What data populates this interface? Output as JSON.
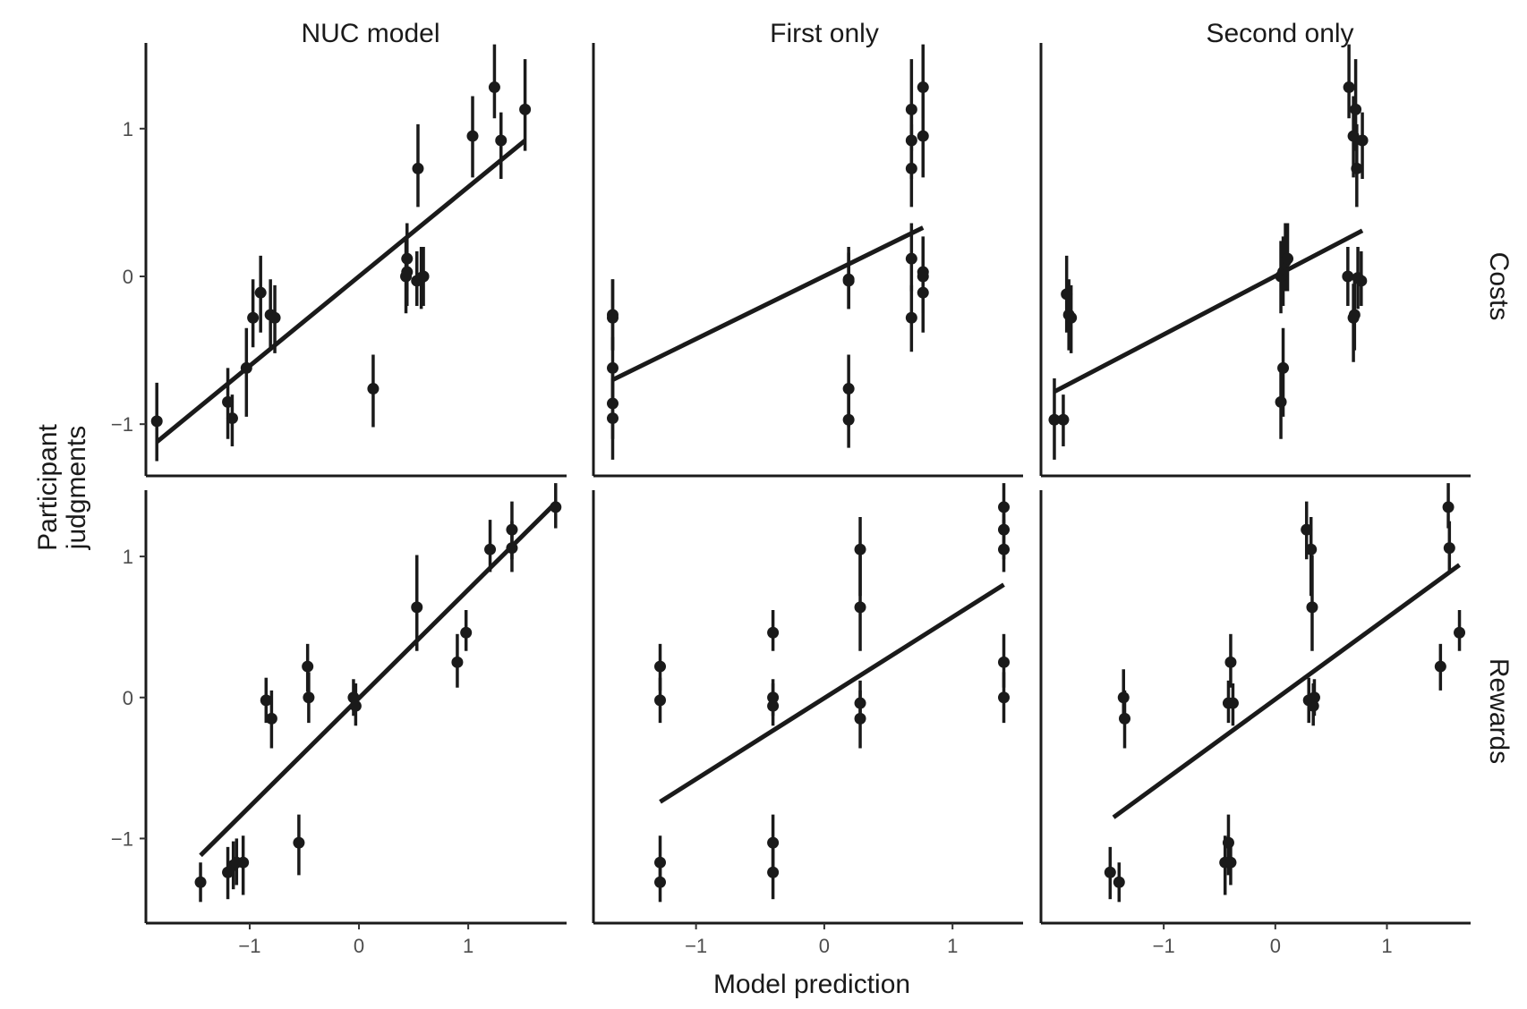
{
  "chart_data": {
    "type": "scatter",
    "xlabel": "Model prediction",
    "ylabel_lines": [
      "Participant",
      "judgments"
    ],
    "columns": [
      "NUC model",
      "First only",
      "Second only"
    ],
    "rows": [
      "Costs",
      "Rewards"
    ],
    "colors": {
      "ink": "#1a1a1a",
      "tick_text": "#4d4d4d"
    },
    "rows_scale": [
      {
        "ylim": [
          -1.35,
          1.58
        ],
        "yticks": [
          -1,
          0,
          1
        ],
        "ytick_labels": [
          "−1",
          "0",
          "1"
        ]
      },
      {
        "ylim": [
          -1.6,
          1.47
        ],
        "yticks": [
          -1,
          0,
          1
        ],
        "ytick_labels": [
          "−1",
          "0",
          "1"
        ]
      }
    ],
    "columns_scale": [
      {
        "xlim": [
          -1.95,
          1.9
        ],
        "xticks": [
          -1,
          0,
          1
        ],
        "xtick_labels": [
          "−1",
          "0",
          "1"
        ]
      },
      {
        "xlim": [
          -1.8,
          1.55
        ],
        "xticks": [
          -1,
          0,
          1
        ],
        "xtick_labels": [
          "−1",
          "0",
          "1"
        ]
      },
      {
        "xlim": [
          -2.1,
          1.75
        ],
        "xticks": [
          -1,
          0,
          1
        ],
        "xtick_labels": [
          "−1",
          "0",
          "1"
        ]
      }
    ],
    "panels": [
      {
        "row": "Costs",
        "column": "NUC model",
        "fit": [
          [
            -1.85,
            -1.12
          ],
          [
            1.52,
            0.92
          ]
        ],
        "points": [
          [
            -1.85,
            -0.98,
            -1.25,
            -0.72
          ],
          [
            -1.2,
            -0.85,
            -1.1,
            -0.62
          ],
          [
            -1.16,
            -0.96,
            -1.15,
            -0.8
          ],
          [
            -1.03,
            -0.62,
            -0.95,
            -0.35
          ],
          [
            -0.97,
            -0.28,
            -0.48,
            -0.02
          ],
          [
            -0.9,
            -0.11,
            -0.38,
            0.14
          ],
          [
            -0.81,
            -0.26,
            -0.5,
            -0.02
          ],
          [
            -0.77,
            -0.28,
            -0.52,
            -0.06
          ],
          [
            0.13,
            -0.76,
            -1.02,
            -0.53
          ],
          [
            0.43,
            0.0,
            -0.25,
            0.24
          ],
          [
            0.44,
            0.03,
            -0.2,
            0.27
          ],
          [
            0.44,
            0.12,
            -0.1,
            0.36
          ],
          [
            0.54,
            0.73,
            0.47,
            1.03
          ],
          [
            0.53,
            -0.03,
            -0.2,
            0.17
          ],
          [
            0.57,
            -0.01,
            -0.22,
            0.2
          ],
          [
            0.59,
            0.0,
            -0.2,
            0.2
          ],
          [
            1.04,
            0.95,
            0.67,
            1.22
          ],
          [
            1.24,
            1.28,
            1.07,
            1.57
          ],
          [
            1.3,
            0.92,
            0.66,
            1.11
          ],
          [
            1.52,
            1.13,
            0.85,
            1.47
          ]
        ]
      },
      {
        "row": "Costs",
        "column": "First only",
        "fit": [
          [
            -1.65,
            -0.7
          ],
          [
            0.77,
            0.33
          ]
        ],
        "points": [
          [
            -1.65,
            -0.96,
            -1.24,
            -0.69
          ],
          [
            -1.65,
            -0.86,
            -1.1,
            -0.62
          ],
          [
            -1.65,
            -0.62,
            -0.85,
            -0.41
          ],
          [
            -1.65,
            -0.28,
            -0.5,
            -0.02
          ],
          [
            -1.65,
            -0.26,
            -0.5,
            -0.02
          ],
          [
            0.19,
            -0.02,
            -0.22,
            0.2
          ],
          [
            0.19,
            -0.03,
            -0.22,
            0.16
          ],
          [
            0.19,
            -0.76,
            -1.02,
            -0.53
          ],
          [
            0.19,
            -0.97,
            -1.16,
            -0.72
          ],
          [
            0.68,
            1.13,
            0.85,
            1.47
          ],
          [
            0.68,
            0.92,
            0.66,
            1.11
          ],
          [
            0.68,
            0.73,
            0.47,
            1.03
          ],
          [
            0.68,
            0.12,
            -0.1,
            0.36
          ],
          [
            0.68,
            -0.28,
            -0.51,
            -0.06
          ],
          [
            0.77,
            1.28,
            1.07,
            1.57
          ],
          [
            0.77,
            0.95,
            0.67,
            1.22
          ],
          [
            0.77,
            0.03,
            -0.2,
            0.27
          ],
          [
            0.77,
            0.0,
            -0.25,
            0.24
          ],
          [
            0.77,
            -0.11,
            -0.38,
            0.14
          ]
        ]
      },
      {
        "row": "Costs",
        "column": "Second only",
        "fit": [
          [
            -1.98,
            -0.78
          ],
          [
            0.78,
            0.31
          ]
        ],
        "points": [
          [
            -1.98,
            -0.97,
            -1.24,
            -0.69
          ],
          [
            -1.9,
            -0.97,
            -1.15,
            -0.8
          ],
          [
            -1.87,
            -0.12,
            -0.38,
            0.14
          ],
          [
            -1.83,
            -0.28,
            -0.52,
            -0.06
          ],
          [
            -1.85,
            -0.26,
            -0.5,
            -0.02
          ],
          [
            0.05,
            -0.85,
            -1.1,
            -0.62
          ],
          [
            0.07,
            -0.62,
            -0.95,
            -0.35
          ],
          [
            0.05,
            0.0,
            -0.25,
            0.24
          ],
          [
            0.07,
            0.03,
            -0.2,
            0.27
          ],
          [
            0.09,
            0.1,
            -0.1,
            0.36
          ],
          [
            0.11,
            0.12,
            -0.1,
            0.36
          ],
          [
            0.66,
            1.28,
            1.07,
            1.57
          ],
          [
            0.7,
            0.95,
            0.67,
            1.22
          ],
          [
            0.72,
            1.13,
            0.85,
            1.47
          ],
          [
            0.73,
            0.73,
            0.47,
            1.03
          ],
          [
            0.78,
            0.92,
            0.66,
            1.11
          ],
          [
            0.65,
            0.0,
            -0.2,
            0.2
          ],
          [
            0.71,
            -0.26,
            -0.5,
            -0.02
          ],
          [
            0.7,
            -0.28,
            -0.58,
            -0.05
          ],
          [
            0.74,
            -0.01,
            -0.22,
            0.2
          ],
          [
            0.77,
            -0.03,
            -0.2,
            0.17
          ]
        ]
      },
      {
        "row": "Rewards",
        "column": "NUC model",
        "fit": [
          [
            -1.45,
            -1.12
          ],
          [
            1.8,
            1.38
          ]
        ],
        "points": [
          [
            -1.45,
            -1.31,
            -1.45,
            -1.17
          ],
          [
            -1.2,
            -1.24,
            -1.43,
            -1.06
          ],
          [
            -1.15,
            -1.19,
            -1.36,
            -1.02
          ],
          [
            -1.12,
            -1.17,
            -1.33,
            -1.0
          ],
          [
            -1.06,
            -1.17,
            -1.4,
            -0.98
          ],
          [
            -0.85,
            -0.02,
            -0.18,
            0.14
          ],
          [
            -0.8,
            -0.15,
            -0.36,
            0.05
          ],
          [
            -0.47,
            0.22,
            0.04,
            0.38
          ],
          [
            -0.46,
            0.0,
            -0.18,
            0.18
          ],
          [
            -0.55,
            -1.03,
            -1.26,
            -0.83
          ],
          [
            -0.05,
            0.0,
            -0.13,
            0.13
          ],
          [
            -0.03,
            -0.06,
            -0.2,
            0.1
          ],
          [
            0.53,
            0.64,
            0.33,
            1.01
          ],
          [
            0.9,
            0.25,
            0.07,
            0.45
          ],
          [
            0.98,
            0.46,
            0.33,
            0.62
          ],
          [
            1.2,
            1.05,
            0.89,
            1.26
          ],
          [
            1.4,
            1.06,
            0.89,
            1.25
          ],
          [
            1.4,
            1.19,
            0.98,
            1.39
          ],
          [
            1.8,
            1.35,
            1.2,
            1.52
          ]
        ]
      },
      {
        "row": "Rewards",
        "column": "First only",
        "fit": [
          [
            -1.28,
            -0.74
          ],
          [
            1.4,
            0.8
          ]
        ],
        "points": [
          [
            -1.28,
            -1.31,
            -1.45,
            -1.17
          ],
          [
            -1.28,
            -1.17,
            -1.33,
            -0.98
          ],
          [
            -1.28,
            0.22,
            0.05,
            0.38
          ],
          [
            -1.28,
            -0.02,
            -0.18,
            0.14
          ],
          [
            -0.4,
            0.46,
            0.33,
            0.62
          ],
          [
            -0.4,
            0.0,
            -0.13,
            0.13
          ],
          [
            -0.4,
            -0.06,
            -0.2,
            0.1
          ],
          [
            -0.4,
            -1.03,
            -1.26,
            -0.83
          ],
          [
            -0.4,
            -1.24,
            -1.43,
            -1.06
          ],
          [
            0.28,
            1.05,
            0.72,
            1.28
          ],
          [
            0.28,
            0.64,
            0.33,
            1.01
          ],
          [
            0.28,
            -0.04,
            -0.18,
            0.12
          ],
          [
            0.28,
            -0.15,
            -0.36,
            0.05
          ],
          [
            1.4,
            1.35,
            1.2,
            1.52
          ],
          [
            1.4,
            1.19,
            0.98,
            1.39
          ],
          [
            1.4,
            1.05,
            0.89,
            1.26
          ],
          [
            1.4,
            0.25,
            0.07,
            0.45
          ],
          [
            1.4,
            0.0,
            -0.18,
            0.18
          ]
        ]
      },
      {
        "row": "Rewards",
        "column": "Second only",
        "fit": [
          [
            -1.45,
            -0.85
          ],
          [
            1.65,
            0.94
          ]
        ],
        "points": [
          [
            -1.48,
            -1.24,
            -1.43,
            -1.06
          ],
          [
            -1.4,
            -1.31,
            -1.45,
            -1.17
          ],
          [
            -1.36,
            0.0,
            -0.18,
            0.2
          ],
          [
            -1.35,
            -0.15,
            -0.36,
            0.05
          ],
          [
            -0.45,
            -1.17,
            -1.4,
            -0.98
          ],
          [
            -0.42,
            -1.03,
            -1.26,
            -0.83
          ],
          [
            -0.4,
            -1.17,
            -1.33,
            -1.0
          ],
          [
            -0.42,
            -0.04,
            -0.18,
            0.12
          ],
          [
            -0.4,
            0.25,
            0.07,
            0.45
          ],
          [
            -0.38,
            -0.04,
            -0.2,
            0.1
          ],
          [
            0.28,
            1.19,
            0.98,
            1.39
          ],
          [
            0.3,
            -0.02,
            -0.18,
            0.14
          ],
          [
            0.32,
            1.05,
            0.72,
            1.28
          ],
          [
            0.33,
            0.64,
            0.33,
            1.01
          ],
          [
            0.34,
            -0.06,
            -0.2,
            0.1
          ],
          [
            0.35,
            0.0,
            -0.13,
            0.13
          ],
          [
            1.48,
            0.22,
            0.05,
            0.38
          ],
          [
            1.55,
            1.35,
            1.2,
            1.52
          ],
          [
            1.56,
            1.06,
            0.89,
            1.25
          ],
          [
            1.65,
            0.46,
            0.33,
            0.62
          ]
        ]
      }
    ]
  }
}
